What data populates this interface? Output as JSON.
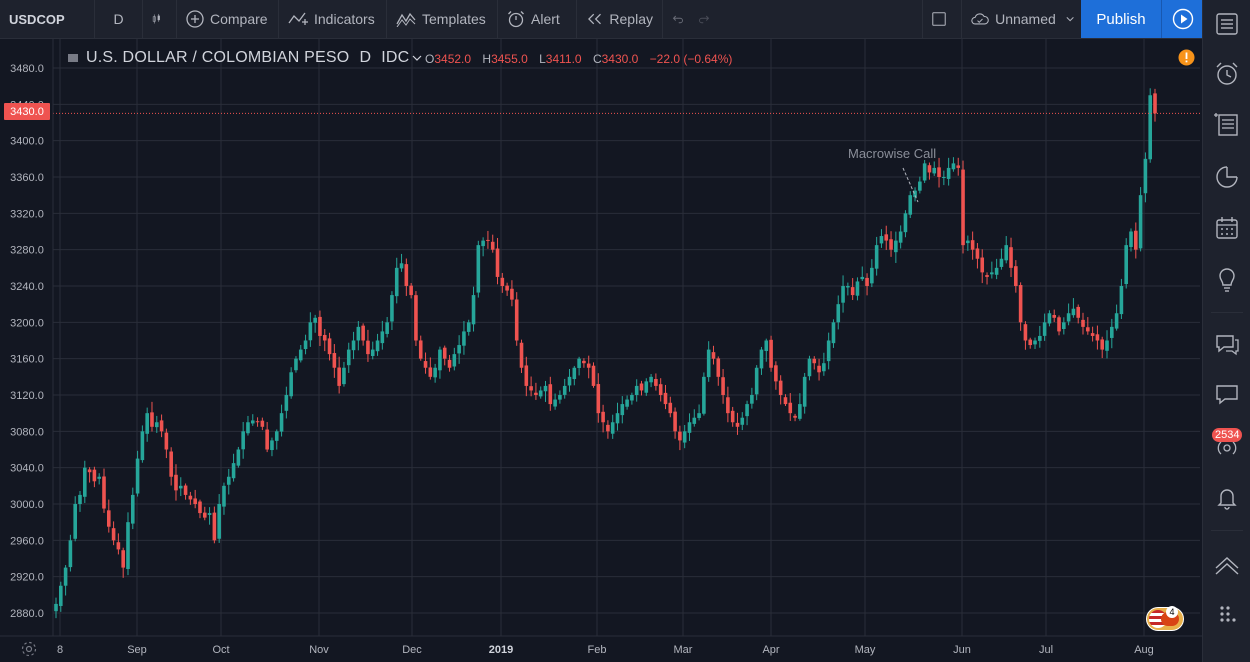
{
  "toolbar": {
    "symbol": "USDCOP",
    "interval": "D",
    "compare": "Compare",
    "indicators": "Indicators",
    "templates": "Templates",
    "alert": "Alert",
    "replay": "Replay",
    "layout_name": "Unnamed",
    "publish": "Publish"
  },
  "legend": {
    "title": "U.S. DOLLAR / COLOMBIAN PESO",
    "interval": "D",
    "exchange": "IDC",
    "o_label": "O",
    "o": "3452.0",
    "h_label": "H",
    "h": "3455.0",
    "l_label": "L",
    "l": "3411.0",
    "c_label": "C",
    "c": "3430.0",
    "change": "−22.0 (−0.64%)"
  },
  "last_price": "3430.0",
  "annotation": "Macrowise Call",
  "sidebar": {
    "notifications_count": "2534",
    "avatar_badge": "4"
  },
  "colors": {
    "up": "#26a69a",
    "down": "#ef5350",
    "bg": "#131722",
    "accent": "#1e6fd9"
  },
  "chart_data": {
    "type": "candlestick",
    "title": "U.S. DOLLAR / COLOMBIAN PESO",
    "y_ticks": [
      "3480.0",
      "3440.0",
      "3400.0",
      "3360.0",
      "3320.0",
      "3280.0",
      "3240.0",
      "3200.0",
      "3160.0",
      "3120.0",
      "3080.0",
      "3040.0",
      "3000.0",
      "2960.0",
      "2920.0",
      "2880.0"
    ],
    "x_ticks": [
      "8",
      "Sep",
      "Oct",
      "Nov",
      "Dec",
      "2019",
      "Feb",
      "Mar",
      "Apr",
      "May",
      "Jun",
      "Jul",
      "Aug"
    ],
    "ylim": [
      2855,
      3495
    ],
    "closes": [
      2890,
      2910,
      2930,
      2960,
      3000,
      3010,
      3040,
      3035,
      3025,
      3030,
      2995,
      2975,
      2960,
      2950,
      2930,
      2980,
      3010,
      3050,
      3080,
      3100,
      3085,
      3090,
      3080,
      3060,
      3030,
      3015,
      3020,
      3010,
      3005,
      3000,
      2990,
      2985,
      2990,
      2960,
      3000,
      3020,
      3030,
      3045,
      3060,
      3080,
      3090,
      3092,
      3090,
      3085,
      3060,
      3070,
      3080,
      3100,
      3120,
      3145,
      3160,
      3170,
      3180,
      3200,
      3205,
      3185,
      3180,
      3165,
      3150,
      3130,
      3150,
      3170,
      3180,
      3195,
      3180,
      3165,
      3170,
      3180,
      3190,
      3200,
      3230,
      3260,
      3265,
      3240,
      3230,
      3180,
      3160,
      3150,
      3140,
      3150,
      3170,
      3160,
      3150,
      3165,
      3175,
      3190,
      3200,
      3230,
      3285,
      3290,
      3290,
      3280,
      3250,
      3240,
      3235,
      3225,
      3180,
      3150,
      3130,
      3125,
      3120,
      3125,
      3130,
      3110,
      3115,
      3120,
      3130,
      3140,
      3150,
      3160,
      3155,
      3150,
      3130,
      3100,
      3090,
      3080,
      3090,
      3100,
      3110,
      3115,
      3120,
      3130,
      3125,
      3135,
      3140,
      3130,
      3120,
      3110,
      3100,
      3080,
      3070,
      3080,
      3090,
      3095,
      3100,
      3140,
      3170,
      3160,
      3140,
      3120,
      3100,
      3090,
      3085,
      3095,
      3110,
      3120,
      3150,
      3170,
      3180,
      3150,
      3135,
      3120,
      3110,
      3100,
      3095,
      3110,
      3140,
      3160,
      3155,
      3145,
      3155,
      3180,
      3200,
      3220,
      3240,
      3240,
      3230,
      3245,
      3250,
      3240,
      3260,
      3285,
      3295,
      3290,
      3280,
      3290,
      3300,
      3320,
      3340,
      3345,
      3355,
      3375,
      3365,
      3370,
      3360,
      3360,
      3370,
      3375,
      3370,
      3285,
      3290,
      3280,
      3270,
      3255,
      3250,
      3255,
      3260,
      3270,
      3285,
      3260,
      3240,
      3200,
      3180,
      3175,
      3180,
      3185,
      3200,
      3210,
      3205,
      3190,
      3200,
      3210,
      3215,
      3205,
      3195,
      3190,
      3185,
      3180,
      3170,
      3180,
      3195,
      3210,
      3240,
      3285,
      3300,
      3280,
      3340,
      3380,
      3450,
      3430
    ]
  }
}
